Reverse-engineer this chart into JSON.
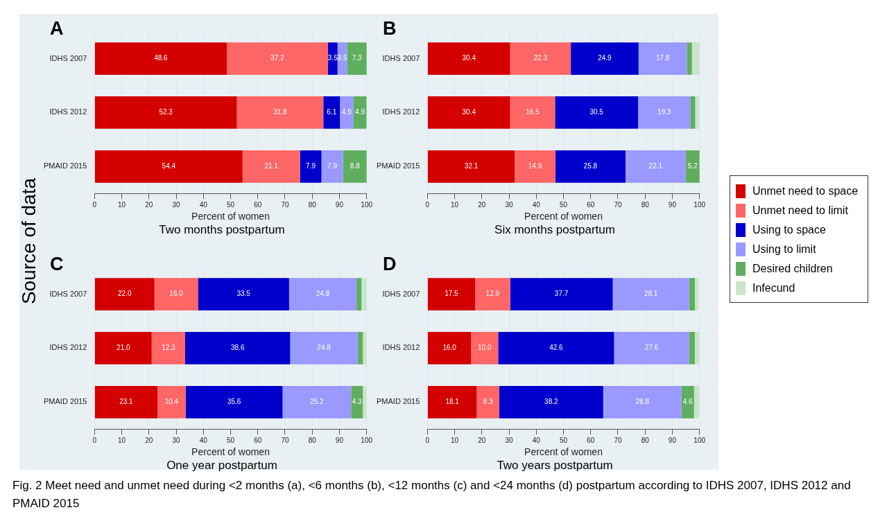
{
  "chart_data": [
    {
      "type": "bar",
      "title": "A",
      "subtitle": "Two months postpartum",
      "ylabel": "Source of data",
      "xlabel": "Percent of women",
      "orientation": "horizontal",
      "stacked": true,
      "grid": "x",
      "legend": "right",
      "categories": [
        "IDHS 2007",
        "IDHS 2012",
        "PMAID 2015"
      ],
      "xlim": [
        0,
        100
      ],
      "xticks": [
        0,
        10,
        20,
        30,
        40,
        50,
        60,
        70,
        80,
        90,
        100
      ],
      "series": [
        {
          "name": "Unmet need to space",
          "color": "#d40000",
          "values": [
            48.6,
            52.3,
            54.4
          ],
          "value_labels": [
            "48.6",
            "52.3",
            "54.4"
          ]
        },
        {
          "name": "Unmet need to limit",
          "color": "#ff6666",
          "values": [
            37.2,
            31.8,
            21.1
          ],
          "value_labels": [
            "37.2",
            "31.8",
            "21.1"
          ]
        },
        {
          "name": "Using to space",
          "color": "#0000cc",
          "values": [
            3.5,
            6.1,
            7.9
          ],
          "value_labels": [
            "3.5",
            "6.1",
            "7.9"
          ]
        },
        {
          "name": "Using to limit",
          "color": "#9999ff",
          "values": [
            3.5,
            4.9,
            7.9
          ],
          "value_labels": [
            "3.5",
            "4.9",
            "7.9"
          ]
        },
        {
          "name": "Desired children",
          "color": "#5fae5f",
          "values": [
            7.3,
            4.9,
            8.8
          ],
          "value_labels": [
            "7.3",
            "4.9",
            "8.8"
          ]
        },
        {
          "name": "Infecund",
          "color": "#c8e6c8",
          "values": [
            null,
            null,
            null
          ]
        }
      ],
      "annotations": [
        "Fig. 2 Meet need and unmet need during <2 months (a), <6 months (b), <12 months (c) and <24 months (d) postpartum according to IDHS 2007, IDHS 2012 and PMAID 2015"
      ]
    },
    {
      "type": "bar",
      "title": "B",
      "subtitle": "Six months postpartum",
      "xlabel": "Percent of women",
      "orientation": "horizontal",
      "stacked": true,
      "grid": "x",
      "categories": [
        "IDHS 2007",
        "IDHS 2012",
        "PMAID 2015"
      ],
      "xlim": [
        0,
        100
      ],
      "xticks": [
        0,
        10,
        20,
        30,
        40,
        50,
        60,
        70,
        80,
        90,
        100
      ],
      "series": [
        {
          "color": "#d40000",
          "values": [
            30.4,
            30.4,
            32.1
          ],
          "value_labels": [
            "30.4",
            "30.4",
            "32.1"
          ]
        },
        {
          "color": "#ff6666",
          "values": [
            22.3,
            16.5,
            14.9
          ],
          "value_labels": [
            "22.3",
            "16.5",
            "14.9"
          ]
        },
        {
          "color": "#0000cc",
          "values": [
            24.9,
            30.5,
            25.8
          ],
          "value_labels": [
            "24.9",
            "30.5",
            "25.8"
          ]
        },
        {
          "color": "#9999ff",
          "values": [
            17.8,
            19.3,
            22.1
          ],
          "value_labels": [
            "17.8",
            "19.3",
            "22.1"
          ]
        },
        {
          "color": "#5fae5f",
          "values": [
            1.8,
            1.7,
            5.2
          ],
          "value_labels": [
            null,
            null,
            "5.2"
          ]
        },
        {
          "color": "#c8e6c8",
          "values": [
            2.8,
            1.6,
            null
          ]
        }
      ]
    },
    {
      "type": "bar",
      "title": "C",
      "subtitle": "One year postpartum",
      "xlabel": "Percent of women",
      "orientation": "horizontal",
      "stacked": true,
      "grid": "x",
      "categories": [
        "IDHS 2007",
        "IDHS 2012",
        "PMAID 2015"
      ],
      "xlim": [
        0,
        100
      ],
      "xticks": [
        0,
        10,
        20,
        30,
        40,
        50,
        60,
        70,
        80,
        90,
        100
      ],
      "series": [
        {
          "color": "#d40000",
          "values": [
            22.0,
            21.0,
            23.1
          ],
          "value_labels": [
            "22.0",
            "21.0",
            "23.1"
          ]
        },
        {
          "color": "#ff6666",
          "values": [
            16.0,
            12.3,
            10.4
          ],
          "value_labels": [
            "16.0",
            "12.3",
            "10.4"
          ]
        },
        {
          "color": "#0000cc",
          "values": [
            33.5,
            38.6,
            35.6
          ],
          "value_labels": [
            "33.5",
            "38.6",
            "35.6"
          ]
        },
        {
          "color": "#9999ff",
          "values": [
            24.8,
            24.8,
            25.2
          ],
          "value_labels": [
            "24.8",
            "24.8",
            "25.2"
          ]
        },
        {
          "color": "#5fae5f",
          "values": [
            1.8,
            1.9,
            4.3
          ],
          "value_labels": [
            null,
            null,
            "4.3"
          ]
        },
        {
          "color": "#c8e6c8",
          "values": [
            1.9,
            1.4,
            1.4
          ]
        }
      ]
    },
    {
      "type": "bar",
      "title": "D",
      "subtitle": "Two years postpartum",
      "xlabel": "Percent of women",
      "orientation": "horizontal",
      "stacked": true,
      "grid": "x",
      "categories": [
        "IDHS 2007",
        "IDHS 2012",
        "PMAID 2015"
      ],
      "xlim": [
        0,
        100
      ],
      "xticks": [
        0,
        10,
        20,
        30,
        40,
        50,
        60,
        70,
        80,
        90,
        100
      ],
      "series": [
        {
          "color": "#d40000",
          "values": [
            17.5,
            16.0,
            18.1
          ],
          "value_labels": [
            "17.5",
            "16.0",
            "18.1"
          ]
        },
        {
          "color": "#ff6666",
          "values": [
            12.9,
            10.0,
            8.3
          ],
          "value_labels": [
            "12.9",
            "10.0",
            "8.3"
          ]
        },
        {
          "color": "#0000cc",
          "values": [
            37.7,
            42.6,
            38.2
          ],
          "value_labels": [
            "37.7",
            "42.6",
            "38.2"
          ]
        },
        {
          "color": "#9999ff",
          "values": [
            28.1,
            27.6,
            28.8
          ],
          "value_labels": [
            "28.1",
            "27.6",
            "28.8"
          ]
        },
        {
          "color": "#5fae5f",
          "values": [
            2.1,
            2.1,
            4.6
          ],
          "value_labels": [
            null,
            null,
            "4.6"
          ]
        },
        {
          "color": "#c8e6c8",
          "values": [
            1.3,
            1.7,
            1.8
          ]
        }
      ]
    }
  ]
}
